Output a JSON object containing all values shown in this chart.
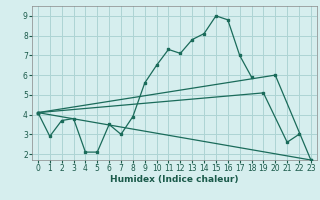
{
  "xlabel": "Humidex (Indice chaleur)",
  "bg_color": "#d6eeee",
  "grid_color": "#add4d4",
  "line_color": "#1a6b5a",
  "xlim": [
    -0.5,
    23.5
  ],
  "ylim": [
    1.7,
    9.5
  ],
  "yticks": [
    2,
    3,
    4,
    5,
    6,
    7,
    8,
    9
  ],
  "xticks": [
    0,
    1,
    2,
    3,
    4,
    5,
    6,
    7,
    8,
    9,
    10,
    11,
    12,
    13,
    14,
    15,
    16,
    17,
    18,
    19,
    20,
    21,
    22,
    23
  ],
  "line1_x": [
    0,
    1,
    2,
    3,
    4,
    5,
    6,
    7,
    8,
    9,
    10,
    11,
    12,
    13,
    14,
    15,
    16,
    17,
    18
  ],
  "line1_y": [
    4.1,
    2.9,
    3.7,
    3.8,
    2.1,
    2.1,
    3.5,
    3.0,
    3.9,
    5.6,
    6.5,
    7.3,
    7.1,
    7.8,
    8.1,
    9.0,
    8.8,
    7.0,
    5.9
  ],
  "line2_x": [
    0,
    19,
    21,
    22
  ],
  "line2_y": [
    4.1,
    5.1,
    2.6,
    3.0
  ],
  "line3_x": [
    0,
    20,
    23
  ],
  "line3_y": [
    4.1,
    6.0,
    1.7
  ],
  "line4_x": [
    0,
    23
  ],
  "line4_y": [
    4.1,
    1.7
  ]
}
